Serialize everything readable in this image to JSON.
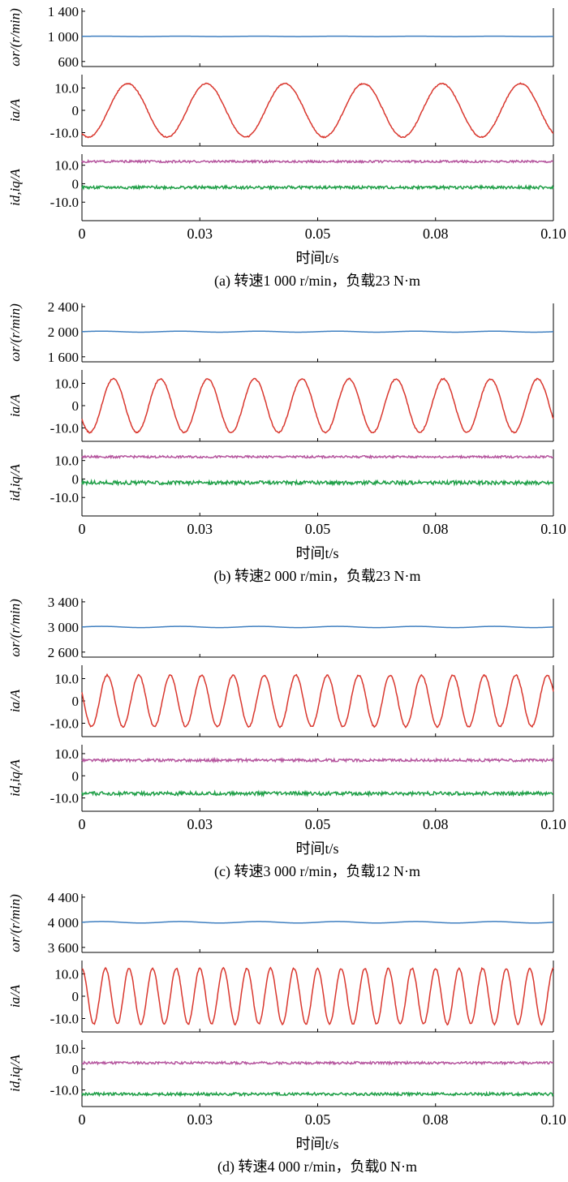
{
  "x_axis": {
    "label": "时间t/s",
    "range": [
      0,
      0.1
    ],
    "tick_values": [
      0,
      0.025,
      0.05,
      0.075,
      0.1
    ],
    "tick_labels": [
      "0",
      "0.03",
      "0.05",
      "0.08",
      "0.10"
    ]
  },
  "colors": {
    "speed": "#3f7fc0",
    "ia": "#d9372e",
    "id": "#b5559e",
    "iq": "#1f9f47"
  },
  "chart_data": [
    {
      "type": "line",
      "caption": "(a) 转速1 000 r/min，负载23 N·m",
      "panels": [
        {
          "id": "speed",
          "ylabel": "ωr/(r/min)",
          "yticks": [
            "1 400",
            "1 000",
            "600"
          ],
          "ytick_values": [
            1400,
            1000,
            600
          ],
          "ylim": [
            520,
            1450
          ],
          "series": [
            {
              "color_key": "speed",
              "kind": "constant",
              "value": 1000,
              "ripple": 3
            }
          ]
        },
        {
          "id": "ia",
          "ylabel": "ia/A",
          "yticks": [
            "10.0",
            "0",
            "-10.0"
          ],
          "ytick_values": [
            10,
            0,
            -10
          ],
          "ylim": [
            -16,
            16
          ],
          "series": [
            {
              "color_key": "ia",
              "kind": "sine",
              "amplitude": 12,
              "cycles": 6,
              "phase_deg": 240,
              "noise": 0.5
            }
          ]
        },
        {
          "id": "dq",
          "ylabel": "id,iq/A",
          "yticks": [
            "10.0",
            "0",
            "-10.0"
          ],
          "ytick_values": [
            10,
            0,
            -10
          ],
          "ylim": [
            -20,
            16
          ],
          "series": [
            {
              "name": "iq",
              "color_key": "id",
              "kind": "constant",
              "value": 12,
              "noise": 0.6
            },
            {
              "name": "id",
              "color_key": "iq",
              "kind": "constant",
              "value": -2,
              "noise": 0.8
            }
          ]
        }
      ]
    },
    {
      "type": "line",
      "caption": "(b) 转速2 000 r/min，负载23 N·m",
      "panels": [
        {
          "id": "speed",
          "ylabel": "ωr/(r/min)",
          "yticks": [
            "2 400",
            "2 000",
            "1 600"
          ],
          "ytick_values": [
            2400,
            2000,
            1600
          ],
          "ylim": [
            1520,
            2450
          ],
          "series": [
            {
              "color_key": "speed",
              "kind": "constant",
              "value": 2000,
              "ripple": 8
            }
          ]
        },
        {
          "id": "ia",
          "ylabel": "ia/A",
          "yticks": [
            "10.0",
            "0",
            "-10.0"
          ],
          "ytick_values": [
            10,
            0,
            -10
          ],
          "ylim": [
            -16,
            16
          ],
          "series": [
            {
              "color_key": "ia",
              "kind": "sine",
              "amplitude": 12,
              "cycles": 10,
              "phase_deg": 210,
              "noise": 0.6
            }
          ]
        },
        {
          "id": "dq",
          "ylabel": "id,iq/A",
          "yticks": [
            "10.0",
            "0",
            "-10.0"
          ],
          "ytick_values": [
            10,
            0,
            -10
          ],
          "ylim": [
            -20,
            16
          ],
          "series": [
            {
              "name": "iq",
              "color_key": "id",
              "kind": "constant",
              "value": 12,
              "noise": 0.6
            },
            {
              "name": "id",
              "color_key": "iq",
              "kind": "constant",
              "value": -2,
              "noise": 1.0
            }
          ]
        }
      ]
    },
    {
      "type": "line",
      "caption": "(c) 转速3 000 r/min，负载12 N·m",
      "panels": [
        {
          "id": "speed",
          "ylabel": "ωr/(r/min)",
          "yticks": [
            "3 400",
            "3 000",
            "2 600"
          ],
          "ytick_values": [
            3400,
            3000,
            2600
          ],
          "ylim": [
            2520,
            3450
          ],
          "series": [
            {
              "color_key": "speed",
              "kind": "constant",
              "value": 3000,
              "ripple": 10
            }
          ]
        },
        {
          "id": "ia",
          "ylabel": "ia/A",
          "yticks": [
            "10.0",
            "0",
            "-10.0"
          ],
          "ytick_values": [
            10,
            0,
            -10
          ],
          "ylim": [
            -16,
            16
          ],
          "series": [
            {
              "color_key": "ia",
              "kind": "sine",
              "amplitude": 11.5,
              "cycles": 15,
              "phase_deg": 160,
              "noise": 0.7
            }
          ]
        },
        {
          "id": "dq",
          "ylabel": "id,iq/A",
          "yticks": [
            "10.0",
            "0",
            "-10.0"
          ],
          "ytick_values": [
            10,
            0,
            -10
          ],
          "ylim": [
            -16,
            14
          ],
          "series": [
            {
              "name": "iq",
              "color_key": "id",
              "kind": "constant",
              "value": 7,
              "noise": 0.6
            },
            {
              "name": "id",
              "color_key": "iq",
              "kind": "constant",
              "value": -8,
              "noise": 0.8
            }
          ]
        }
      ]
    },
    {
      "type": "line",
      "caption": "(d) 转速4 000 r/min，负载0 N·m",
      "panels": [
        {
          "id": "speed",
          "ylabel": "ωr/(r/min)",
          "yticks": [
            "4 400",
            "4 000",
            "3 600"
          ],
          "ytick_values": [
            4400,
            4000,
            3600
          ],
          "ylim": [
            3520,
            4450
          ],
          "series": [
            {
              "color_key": "speed",
              "kind": "constant",
              "value": 4000,
              "ripple": 12
            }
          ]
        },
        {
          "id": "ia",
          "ylabel": "ia/A",
          "yticks": [
            "10.0",
            "0",
            "-10.0"
          ],
          "ytick_values": [
            10,
            0,
            -10
          ],
          "ylim": [
            -16,
            16
          ],
          "series": [
            {
              "color_key": "ia",
              "kind": "sine",
              "amplitude": 12.5,
              "cycles": 20,
              "phase_deg": 90,
              "noise": 0.7
            }
          ]
        },
        {
          "id": "dq",
          "ylabel": "id,iq/A",
          "yticks": [
            "10.0",
            "0",
            "-10.0"
          ],
          "ytick_values": [
            10,
            0,
            -10
          ],
          "ylim": [
            -18,
            14
          ],
          "series": [
            {
              "name": "iq",
              "color_key": "id",
              "kind": "constant",
              "value": 3,
              "noise": 0.6
            },
            {
              "name": "id",
              "color_key": "iq",
              "kind": "constant",
              "value": -12,
              "noise": 0.7
            }
          ]
        }
      ]
    }
  ]
}
